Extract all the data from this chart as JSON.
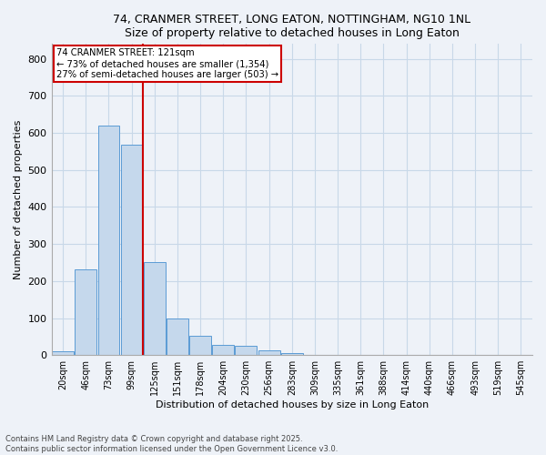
{
  "title": "74, CRANMER STREET, LONG EATON, NOTTINGHAM, NG10 1NL",
  "subtitle": "Size of property relative to detached houses in Long Eaton",
  "xlabel": "Distribution of detached houses by size in Long Eaton",
  "ylabel": "Number of detached properties",
  "bar_labels": [
    "20sqm",
    "46sqm",
    "73sqm",
    "99sqm",
    "125sqm",
    "151sqm",
    "178sqm",
    "204sqm",
    "230sqm",
    "256sqm",
    "283sqm",
    "309sqm",
    "335sqm",
    "361sqm",
    "388sqm",
    "414sqm",
    "440sqm",
    "466sqm",
    "493sqm",
    "519sqm",
    "545sqm"
  ],
  "bar_values": [
    10,
    232,
    620,
    568,
    250,
    99,
    53,
    27,
    25,
    14,
    5,
    0,
    0,
    0,
    0,
    0,
    0,
    0,
    0,
    0,
    0
  ],
  "bar_color": "#c5d8ec",
  "bar_edge_color": "#5b9bd5",
  "property_size_label": "74 CRANMER STREET: 121sqm",
  "annotation_line1": "← 73% of detached houses are smaller (1,354)",
  "annotation_line2": "27% of semi-detached houses are larger (503) →",
  "vline_color": "#cc0000",
  "vline_x": 3.5,
  "ylim": [
    0,
    840
  ],
  "yticks": [
    0,
    100,
    200,
    300,
    400,
    500,
    600,
    700,
    800
  ],
  "grid_color": "#c8d8e8",
  "background_color": "#eef2f8",
  "footnote1": "Contains HM Land Registry data © Crown copyright and database right 2025.",
  "footnote2": "Contains public sector information licensed under the Open Government Licence v3.0."
}
